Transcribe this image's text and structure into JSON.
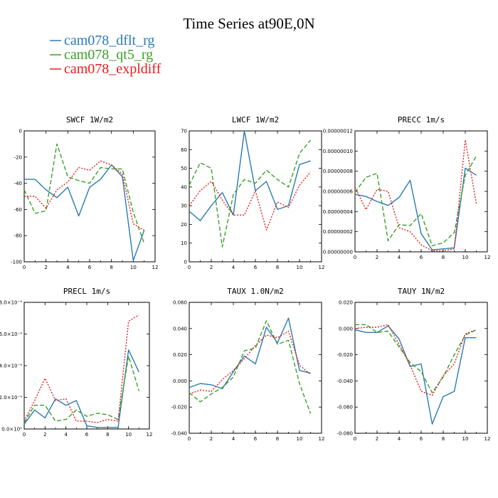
{
  "title": "Time Series at90E,0N",
  "legend": [
    {
      "label": "cam078_dflt_rg",
      "color": "#2a7ab5"
    },
    {
      "label": "cam078_qt5_rg",
      "color": "#3aa02a"
    },
    {
      "label": "cam078_expldiff",
      "color": "#e02020"
    }
  ],
  "chart_data": [
    {
      "type": "line",
      "title": "SWCF   1W/m2",
      "x": [
        0,
        1,
        2,
        3,
        4,
        5,
        6,
        7,
        8,
        9,
        10,
        11
      ],
      "xlim": [
        0,
        12
      ],
      "xticks": [
        "0",
        "2",
        "4",
        "6",
        "8",
        "10",
        "12"
      ],
      "xtick_values": [
        0,
        2,
        4,
        6,
        8,
        10,
        12
      ],
      "ylim": [
        -100,
        0
      ],
      "yticks": [
        "-100",
        "-80",
        "-60",
        "-40",
        "-20",
        "0"
      ],
      "ytick_values": [
        -100,
        -80,
        -60,
        -40,
        -20,
        0
      ],
      "series": [
        {
          "name": "cam078_dflt_rg",
          "color": "#2a7ab5",
          "dash": "",
          "values": [
            -37,
            -37,
            -45,
            -51,
            -43,
            -65,
            -43,
            -37,
            -26,
            -35,
            -99,
            -76
          ]
        },
        {
          "name": "cam078_qt5_rg",
          "color": "#3aa02a",
          "dash": "6,3",
          "values": [
            -45,
            -63,
            -61,
            -10,
            -35,
            -38,
            -40,
            -28,
            -29,
            -29,
            -62,
            -86
          ]
        },
        {
          "name": "cam078_expldiff",
          "color": "#e02020",
          "dash": "2,2",
          "values": [
            -50,
            -50,
            -59,
            -45,
            -39,
            -28,
            -30,
            -23,
            -26,
            -33,
            -71,
            -76
          ]
        }
      ]
    },
    {
      "type": "line",
      "title": "LWCF   1W/m2",
      "x": [
        0,
        1,
        2,
        3,
        4,
        5,
        6,
        7,
        8,
        9,
        10,
        11
      ],
      "xlim": [
        0,
        12
      ],
      "xticks": [
        "0",
        "2",
        "4",
        "6",
        "8",
        "10",
        "12"
      ],
      "xtick_values": [
        0,
        2,
        4,
        6,
        8,
        10,
        12
      ],
      "ylim": [
        0,
        70
      ],
      "yticks": [
        "0",
        "10",
        "20",
        "30",
        "40",
        "50",
        "60",
        "70"
      ],
      "ytick_values": [
        0,
        10,
        20,
        30,
        40,
        50,
        60,
        70
      ],
      "series": [
        {
          "name": "cam078_dflt_rg",
          "color": "#2a7ab5",
          "dash": "",
          "values": [
            27,
            22,
            30,
            37,
            25,
            70,
            38,
            43,
            28,
            30,
            52,
            54
          ]
        },
        {
          "name": "cam078_qt5_rg",
          "color": "#3aa02a",
          "dash": "6,3",
          "values": [
            41,
            53,
            50,
            8,
            36,
            44,
            42,
            49,
            44,
            40,
            58,
            65
          ]
        },
        {
          "name": "cam078_expldiff",
          "color": "#e02020",
          "dash": "2,2",
          "values": [
            30,
            38,
            43,
            33,
            25,
            25,
            38,
            17,
            32,
            29,
            41,
            48
          ]
        }
      ]
    },
    {
      "type": "line",
      "title": "PRECC   1m/s",
      "x": [
        0,
        1,
        2,
        3,
        4,
        5,
        6,
        7,
        8,
        9,
        10,
        11
      ],
      "xlim": [
        0,
        12
      ],
      "xticks": [
        "0",
        "2",
        "4",
        "6",
        "8",
        "10",
        "12"
      ],
      "xtick_values": [
        0,
        2,
        4,
        6,
        8,
        10,
        12
      ],
      "ylim": [
        0,
        1.2e-07
      ],
      "yticks": [
        "0.00000000",
        "0.00000002",
        "0.00000004",
        "0.00000006",
        "0.00000008",
        "0.00000010",
        "0.00000012"
      ],
      "ytick_values": [
        0,
        2e-08,
        4e-08,
        6e-08,
        8e-08,
        1e-07,
        1.2e-07
      ],
      "series": [
        {
          "name": "cam078_dflt_rg",
          "color": "#2a7ab5",
          "dash": "",
          "values": [
            5.7e-08,
            5.5e-08,
            5e-08,
            4.6e-08,
            5.4e-08,
            7.1e-08,
            1.8e-08,
            2e-09,
            3e-09,
            4e-09,
            8.3e-08,
            7.6e-08
          ]
        },
        {
          "name": "cam078_qt5_rg",
          "color": "#3aa02a",
          "dash": "6,3",
          "values": [
            5.9e-08,
            7.4e-08,
            7.8e-08,
            1.1e-08,
            2.7e-08,
            2.6e-08,
            3.8e-08,
            6e-09,
            9e-09,
            1.9e-08,
            7.6e-08,
            9.5e-08
          ]
        },
        {
          "name": "cam078_expldiff",
          "color": "#e02020",
          "dash": "2,2",
          "values": [
            6.4e-08,
            4.2e-08,
            6.2e-08,
            6e-08,
            2.4e-08,
            2e-08,
            7e-09,
            1e-09,
            1e-09,
            3e-09,
            1.11e-07,
            4.8e-08
          ]
        }
      ]
    },
    {
      "type": "line",
      "title": "PRECL   1m/s",
      "x": [
        0,
        1,
        2,
        3,
        4,
        5,
        6,
        7,
        8,
        9,
        10,
        11
      ],
      "xlim": [
        0,
        12
      ],
      "xticks": [
        "0",
        "2",
        "4",
        "6",
        "8",
        "10",
        "12"
      ],
      "xtick_values": [
        0,
        2,
        4,
        6,
        8,
        10,
        12
      ],
      "ylim": [
        0,
        8e-09
      ],
      "yticks": [
        "0.0×10⁰",
        "2.0×10⁻⁹",
        "4.0×10⁻⁹",
        "6.0×10⁻⁹",
        "8.0×10⁻⁹"
      ],
      "ytick_values": [
        0,
        2e-09,
        4e-09,
        6e-09,
        8e-09
      ],
      "series": [
        {
          "name": "cam078_dflt_rg",
          "color": "#2a7ab5",
          "dash": "",
          "values": [
            3e-10,
            1.2e-09,
            7e-10,
            1.9e-09,
            1.5e-09,
            1.8e-09,
            2e-10,
            1e-10,
            1e-10,
            1e-10,
            5e-09,
            3.6e-09
          ]
        },
        {
          "name": "cam078_qt5_rg",
          "color": "#3aa02a",
          "dash": "6,3",
          "values": [
            4e-10,
            1.5e-09,
            1.5e-09,
            5e-10,
            6e-10,
            1.2e-09,
            8e-10,
            1e-09,
            9e-10,
            6e-10,
            4.6e-09,
            2.4e-09
          ]
        },
        {
          "name": "cam078_expldiff",
          "color": "#e02020",
          "dash": "2,2",
          "values": [
            5e-10,
            1.8e-09,
            3.2e-09,
            1.8e-09,
            1.9e-09,
            5e-10,
            5e-10,
            4e-10,
            6e-10,
            5e-10,
            6.8e-09,
            7.2e-09
          ]
        }
      ]
    },
    {
      "type": "line",
      "title": "TAUX   1.0N/m2",
      "x": [
        0,
        1,
        2,
        3,
        4,
        5,
        6,
        7,
        8,
        9,
        10,
        11
      ],
      "xlim": [
        0,
        12
      ],
      "xticks": [
        "0",
        "2",
        "4",
        "6",
        "8",
        "10",
        "12"
      ],
      "xtick_values": [
        0,
        2,
        4,
        6,
        8,
        10,
        12
      ],
      "ylim": [
        -0.04,
        0.06
      ],
      "yticks": [
        "-0.040",
        "-0.020",
        "0.000",
        "0.020",
        "0.040",
        "0.060"
      ],
      "ytick_values": [
        -0.04,
        -0.02,
        0,
        0.02,
        0.04,
        0.06
      ],
      "series": [
        {
          "name": "cam078_dflt_rg",
          "color": "#2a7ab5",
          "dash": "",
          "values": [
            -0.005,
            -0.002,
            -0.003,
            -0.006,
            0.007,
            0.019,
            0.013,
            0.041,
            0.029,
            0.048,
            0.008,
            0.006
          ]
        },
        {
          "name": "cam078_qt5_rg",
          "color": "#3aa02a",
          "dash": "6,3",
          "values": [
            -0.009,
            -0.016,
            -0.01,
            -0.005,
            0.003,
            0.023,
            0.025,
            0.046,
            0.028,
            0.031,
            -0.002,
            -0.025
          ]
        },
        {
          "name": "cam078_expldiff",
          "color": "#e02020",
          "dash": "2,2",
          "values": [
            -0.01,
            -0.007,
            -0.008,
            0.001,
            0.008,
            0.017,
            0.027,
            0.035,
            0.033,
            0.038,
            0.012,
            0.005
          ]
        }
      ]
    },
    {
      "type": "line",
      "title": "TAUY   1N/m2",
      "x": [
        0,
        1,
        2,
        3,
        4,
        5,
        6,
        7,
        8,
        9,
        10,
        11
      ],
      "xlim": [
        0,
        12
      ],
      "xticks": [
        "0",
        "2",
        "4",
        "6",
        "8",
        "10",
        "12"
      ],
      "xtick_values": [
        0,
        2,
        4,
        6,
        8,
        10,
        12
      ],
      "ylim": [
        -0.08,
        0.02
      ],
      "yticks": [
        "-0.080",
        "-0.060",
        "-0.040",
        "-0.020",
        "0.000",
        "0.020"
      ],
      "ytick_values": [
        -0.08,
        -0.06,
        -0.04,
        -0.02,
        0,
        0.02
      ],
      "series": [
        {
          "name": "cam078_dflt_rg",
          "color": "#2a7ab5",
          "dash": "",
          "values": [
            -0.001,
            -0.003,
            -0.003,
            0.002,
            -0.008,
            -0.029,
            -0.027,
            -0.073,
            -0.052,
            -0.048,
            -0.007,
            -0.007
          ]
        },
        {
          "name": "cam078_qt5_rg",
          "color": "#3aa02a",
          "dash": "6,3",
          "values": [
            0.003,
            0.003,
            -0.003,
            -0.002,
            -0.014,
            -0.026,
            -0.033,
            -0.049,
            -0.037,
            -0.02,
            -0.005,
            -0.001
          ]
        },
        {
          "name": "cam078_expldiff",
          "color": "#e02020",
          "dash": "2,2",
          "values": [
            0,
            0.001,
            0.001,
            0.003,
            -0.012,
            -0.028,
            -0.048,
            -0.051,
            -0.036,
            -0.027,
            -0.004,
            -0.001
          ]
        }
      ]
    }
  ]
}
